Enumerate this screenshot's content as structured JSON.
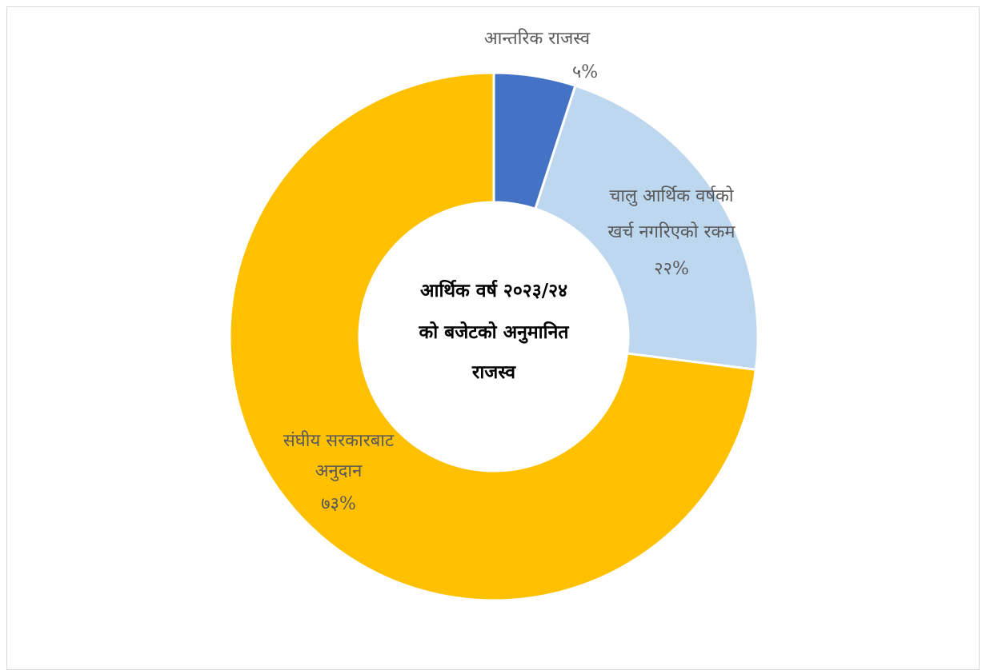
{
  "chart_data": {
    "type": "pie",
    "donut": true,
    "center_title_lines": [
      "आर्थिक वर्ष २०२३/२४",
      "को बजेटको अनुमानित",
      "राजस्व"
    ],
    "slices": [
      {
        "label_lines": [
          "आन्तरिक राजस्व"
        ],
        "value": 5,
        "value_text": "५%",
        "color": "#4472C4"
      },
      {
        "label_lines": [
          "चालु आर्थिक वर्षको",
          "खर्च नगरिएको रकम"
        ],
        "value": 22,
        "value_text": "२२%",
        "color": "#BDD7EE"
      },
      {
        "label_lines": [
          "संघीय सरकारबाट",
          "अनुदान"
        ],
        "value": 73,
        "value_text": "७३%",
        "color": "#FFC000"
      }
    ],
    "legend": "none"
  }
}
